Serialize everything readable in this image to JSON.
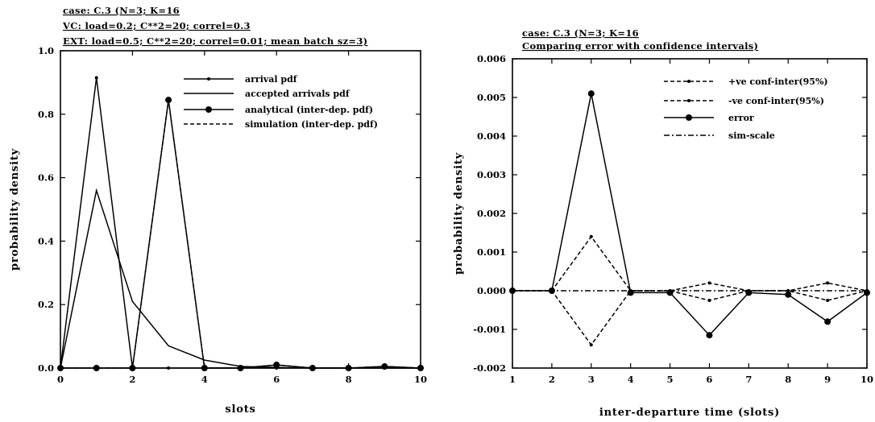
{
  "chart_data": [
    {
      "type": "line",
      "header": [
        "case: C.3 (N=3; K=16",
        "VC: load=0.2; C**2=20; correl=0.3",
        "EXT: load=0.5; C**2=20; correl=0.01; mean batch sz=3)"
      ],
      "xlabel": "slots",
      "ylabel": "probability density",
      "xlim": [
        0,
        10
      ],
      "ylim": [
        0,
        1.0
      ],
      "xticks": [
        "0",
        "2",
        "4",
        "6",
        "8",
        "10"
      ],
      "yticks": [
        "0.0",
        "0.2",
        "0.4",
        "0.6",
        "0.8",
        "1.0"
      ],
      "grid": false,
      "legend_position": "top-right",
      "series": [
        {
          "name": "arrival pdf",
          "style": "solid",
          "marker": "small-dot",
          "x": [
            0,
            1,
            2,
            3,
            4,
            5,
            6,
            7,
            8,
            9,
            10
          ],
          "y": [
            0.0,
            0.915,
            0.0,
            0.0,
            0.0,
            0.0,
            0.0,
            0.0,
            0.0,
            0.0,
            0.0
          ]
        },
        {
          "name": "accepted arrivals pdf",
          "style": "solid",
          "marker": "none",
          "x": [
            0,
            1,
            2,
            3,
            4,
            5,
            6,
            7,
            8,
            9,
            10
          ],
          "y": [
            0.0,
            0.56,
            0.21,
            0.07,
            0.025,
            0.005,
            0.002,
            0.0,
            0.0,
            0.0,
            0.0
          ]
        },
        {
          "name": "analytical (inter-dep. pdf)",
          "style": "solid",
          "marker": "dot",
          "x": [
            0,
            1,
            2,
            3,
            4,
            5,
            6,
            7,
            8,
            9,
            10
          ],
          "y": [
            0.0,
            0.0,
            0.0,
            0.845,
            0.0,
            0.0,
            0.01,
            0.0,
            0.0,
            0.005,
            0.0
          ]
        },
        {
          "name": "simulation (inter-dep. pdf)",
          "style": "dashed",
          "marker": "none",
          "x": [
            0,
            1,
            2,
            3,
            4,
            5,
            6,
            7,
            8,
            9,
            10
          ],
          "y": [
            0.0,
            0.0,
            0.0,
            0.845,
            0.0,
            0.0,
            0.01,
            0.0,
            0.0,
            0.005,
            0.0
          ]
        }
      ]
    },
    {
      "type": "line",
      "header": [
        "case: C.3 (N=3; K=16",
        "Comparing error with confidence intervals)"
      ],
      "xlabel": "inter-departure time (slots)",
      "ylabel": "probability density",
      "xlim": [
        1,
        10
      ],
      "ylim": [
        -0.002,
        0.006
      ],
      "xticks": [
        "1",
        "2",
        "3",
        "4",
        "5",
        "6",
        "7",
        "8",
        "9",
        "10"
      ],
      "yticks": [
        "-0.002",
        "-0.001",
        "0.000",
        "0.001",
        "0.002",
        "0.003",
        "0.004",
        "0.005",
        "0.006"
      ],
      "grid": false,
      "legend_position": "top-right",
      "series": [
        {
          "name": "+ve conf-inter(95%)",
          "style": "dashed",
          "marker": "small-dot",
          "x": [
            1,
            2,
            3,
            4,
            5,
            6,
            7,
            8,
            9,
            10
          ],
          "y": [
            0.0,
            0.0,
            0.0014,
            0.0,
            0.0,
            0.0002,
            0.0,
            0.0,
            0.0002,
            0.0
          ]
        },
        {
          "name": "-ve conf-inter(95%)",
          "style": "dashed",
          "marker": "small-dot",
          "x": [
            1,
            2,
            3,
            4,
            5,
            6,
            7,
            8,
            9,
            10
          ],
          "y": [
            0.0,
            0.0,
            -0.0014,
            0.0,
            0.0,
            -0.00025,
            0.0,
            0.0,
            -0.00025,
            0.0
          ]
        },
        {
          "name": "error",
          "style": "solid",
          "marker": "dot",
          "x": [
            1,
            2,
            3,
            4,
            5,
            6,
            7,
            8,
            9,
            10
          ],
          "y": [
            0.0,
            0.0,
            0.0051,
            -5e-05,
            -5e-05,
            -0.00115,
            -5e-05,
            -0.0001,
            -0.0008,
            -5e-05
          ]
        },
        {
          "name": "sim-scale",
          "style": "dashdot",
          "marker": "none",
          "x": [
            1,
            2,
            3,
            4,
            5,
            6,
            7,
            8,
            9,
            10
          ],
          "y": [
            0,
            0,
            0,
            0,
            0,
            0,
            0,
            0,
            0,
            0
          ]
        }
      ]
    }
  ]
}
